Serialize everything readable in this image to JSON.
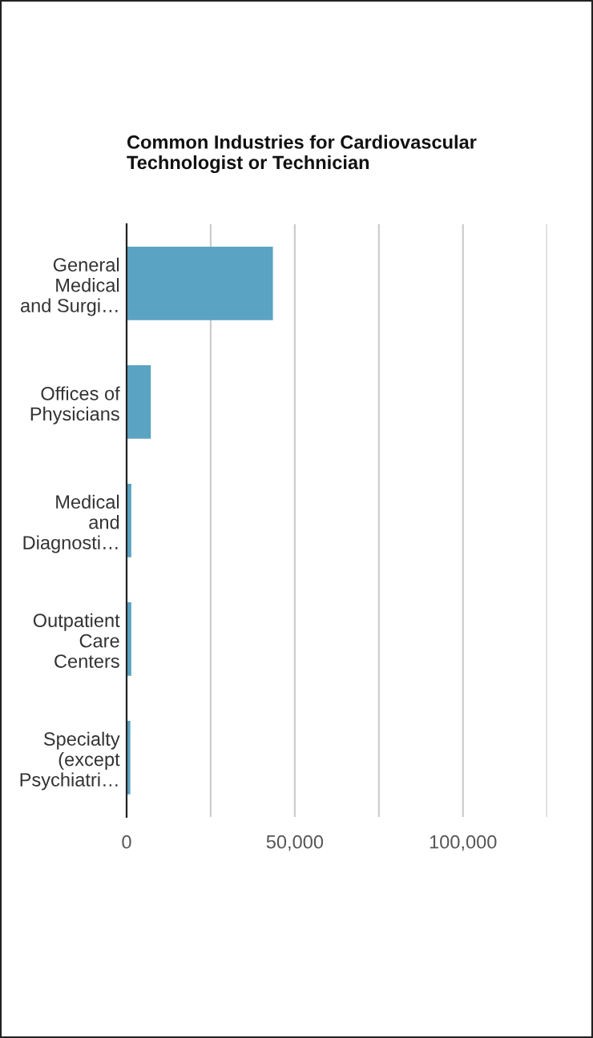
{
  "chart_data": {
    "type": "bar",
    "orientation": "horizontal",
    "title": "Common Industries for Cardiovascular Technologist or Technician",
    "categories": [
      "General Medical and Surgi…",
      "Offices of Physicians",
      "Medical and Diagnosti…",
      "Outpatient Care Centers",
      "Specialty (except Psychiatri…"
    ],
    "values": [
      43500,
      7200,
      1400,
      1400,
      1100
    ],
    "color": "#5ba3c2",
    "xlim": [
      0,
      125000
    ],
    "xticks": [
      0,
      {
        "value": 25000,
        "label": null
      },
      "50,000",
      {
        "value": 75000,
        "label": null
      },
      {
        "value": 100000,
        "label": "100,000"
      },
      {
        "value": 125000,
        "label": null
      }
    ],
    "grid": "x"
  }
}
